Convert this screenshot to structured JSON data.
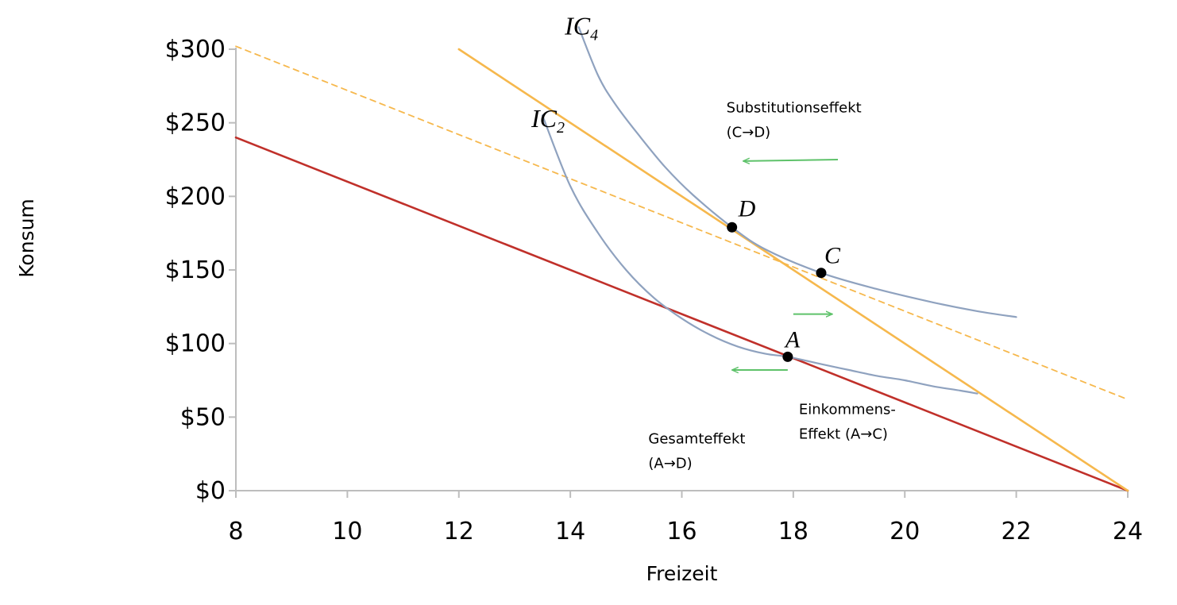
{
  "chart_data": {
    "type": "line",
    "title": "",
    "xlabel": "Freizeit",
    "ylabel": "Konsum",
    "xlim": [
      8,
      24
    ],
    "ylim": [
      0,
      300
    ],
    "x_ticks": [
      "8",
      "10",
      "12",
      "14",
      "16",
      "18",
      "20",
      "22",
      "24"
    ],
    "y_ticks": [
      "$0",
      "$50",
      "$100",
      "$150",
      "$200",
      "$250",
      "$300"
    ],
    "grid": false,
    "series": [
      {
        "id": "budget-original",
        "color": "#c0302a",
        "dashed": false,
        "points": [
          [
            8,
            240
          ],
          [
            24,
            0
          ]
        ]
      },
      {
        "id": "budget-new",
        "color": "#f6b84d",
        "dashed": false,
        "points": [
          [
            12,
            300
          ],
          [
            24,
            0
          ]
        ]
      },
      {
        "id": "budget-compensated",
        "color": "#f6b84d",
        "dashed": true,
        "points": [
          [
            8,
            302
          ],
          [
            24,
            62
          ]
        ]
      },
      {
        "id": "ic2",
        "name": "IC2",
        "color": "#8fa2bf",
        "dashed": false,
        "points": [
          [
            13.5,
            255
          ],
          [
            14,
            207
          ],
          [
            14.5,
            175
          ],
          [
            15,
            150
          ],
          [
            15.5,
            131
          ],
          [
            16,
            117
          ],
          [
            16.5,
            106
          ],
          [
            17,
            98
          ],
          [
            17.5,
            93
          ],
          [
            17.9,
            91
          ],
          [
            18.5,
            86
          ],
          [
            19,
            82
          ],
          [
            19.5,
            78
          ],
          [
            20,
            75
          ],
          [
            20.5,
            71
          ],
          [
            21,
            68
          ],
          [
            21.3,
            66
          ]
        ]
      },
      {
        "id": "ic4",
        "name": "IC4",
        "color": "#8fa2bf",
        "dashed": false,
        "points": [
          [
            14.15,
            315
          ],
          [
            14.5,
            282
          ],
          [
            14.8,
            263
          ],
          [
            15.2,
            243
          ],
          [
            15.7,
            220
          ],
          [
            16.2,
            201
          ],
          [
            16.9,
            179
          ],
          [
            17.5,
            164
          ],
          [
            18.5,
            148
          ],
          [
            19.5,
            137
          ],
          [
            20.5,
            128
          ],
          [
            21.3,
            122
          ],
          [
            22,
            118
          ]
        ]
      }
    ],
    "points": [
      {
        "label": "A",
        "x": 17.9,
        "y": 91
      },
      {
        "label": "C",
        "x": 18.5,
        "y": 148
      },
      {
        "label": "D",
        "x": 16.9,
        "y": 179
      }
    ],
    "curve_labels": [
      {
        "base": "IC",
        "sub": "2",
        "x": 13.3,
        "y": 247
      },
      {
        "base": "IC",
        "sub": "4",
        "x": 13.9,
        "y": 310
      }
    ],
    "annotations": [
      {
        "id": "substitution",
        "lines": [
          "Substitutionseffekt",
          "(C→D)"
        ],
        "x": 16.8,
        "y": 257
      },
      {
        "id": "einkommen",
        "lines": [
          "Einkommens-",
          "Effekt (A→C)"
        ],
        "x": 18.1,
        "y": 52
      },
      {
        "id": "gesamt",
        "lines": [
          "Gesamteffekt",
          "(A→D)"
        ],
        "x": 15.4,
        "y": 32
      }
    ],
    "arrows": [
      {
        "id": "arrow-substitution",
        "direction": "left",
        "color": "#5ec26a",
        "from": [
          18.8,
          225
        ],
        "to": [
          17.1,
          224
        ]
      },
      {
        "id": "arrow-income",
        "direction": "right",
        "color": "#5ec26a",
        "from": [
          18.0,
          120
        ],
        "to": [
          18.7,
          120
        ]
      },
      {
        "id": "arrow-total",
        "direction": "left",
        "color": "#5ec26a",
        "from": [
          17.9,
          82
        ],
        "to": [
          16.9,
          82
        ]
      }
    ]
  }
}
